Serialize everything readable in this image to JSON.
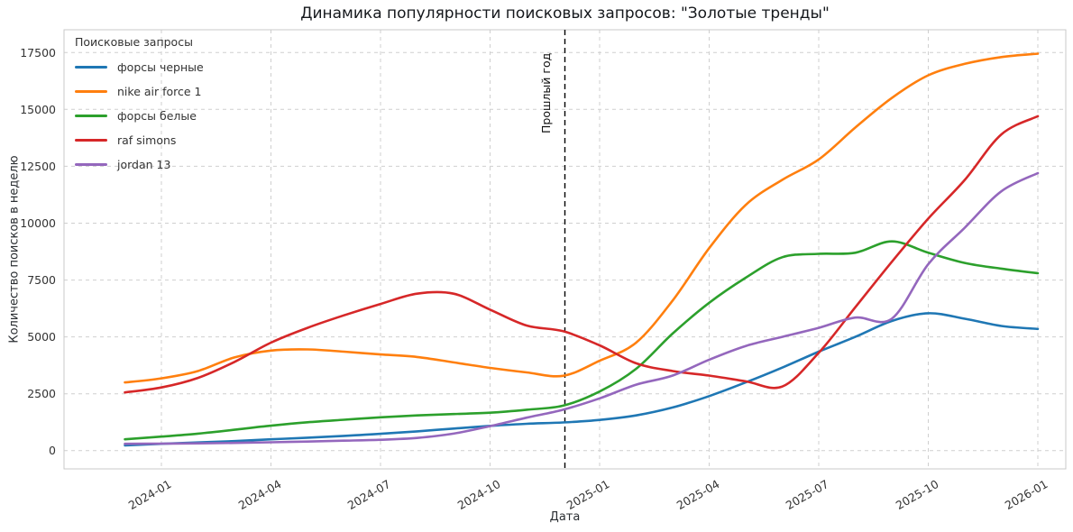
{
  "chart_data": {
    "type": "line",
    "title": "Динамика популярности поисковых запросов: \"Золотые тренды\"",
    "xlabel": "Дата",
    "ylabel": "Количество поисков в неделю",
    "legend_title": "Поисковые запросы",
    "legend_position": "upper-left",
    "grid": true,
    "grid_style": "dashed",
    "ylim": [
      -800,
      18500
    ],
    "y_ticks": [
      0,
      2500,
      5000,
      7500,
      10000,
      12500,
      15000,
      17500
    ],
    "x_tick_labels": [
      "2024-01",
      "2024-04",
      "2024-07",
      "2024-10",
      "2025-01",
      "2025-04",
      "2025-07",
      "2025-10",
      "2026-01"
    ],
    "x": [
      "2023-12",
      "2024-01",
      "2024-02",
      "2024-03",
      "2024-04",
      "2024-05",
      "2024-06",
      "2024-07",
      "2024-08",
      "2024-09",
      "2024-10",
      "2024-11",
      "2024-12",
      "2025-01",
      "2025-02",
      "2025-03",
      "2025-04",
      "2025-05",
      "2025-06",
      "2025-07",
      "2025-08",
      "2025-09",
      "2025-10",
      "2025-11",
      "2025-12",
      "2026-01"
    ],
    "series": [
      {
        "name": "форсы черные",
        "color": "#1f77b4",
        "values": [
          230,
          300,
          360,
          420,
          500,
          570,
          650,
          740,
          850,
          970,
          1090,
          1180,
          1240,
          1350,
          1550,
          1900,
          2400,
          3000,
          3650,
          4350,
          5000,
          5700,
          6040,
          5800,
          5480,
          5350
        ]
      },
      {
        "name": "nike air force 1",
        "color": "#ff7f0e",
        "values": [
          3000,
          3180,
          3500,
          4100,
          4400,
          4450,
          4350,
          4230,
          4120,
          3880,
          3640,
          3440,
          3290,
          3950,
          4750,
          6600,
          8900,
          10800,
          11900,
          12800,
          14200,
          15500,
          16500,
          17000,
          17300,
          17450
        ]
      },
      {
        "name": "форсы белые",
        "color": "#2ca02c",
        "values": [
          500,
          620,
          750,
          920,
          1100,
          1250,
          1360,
          1465,
          1550,
          1610,
          1670,
          1800,
          1980,
          2600,
          3600,
          5150,
          6500,
          7600,
          8500,
          8650,
          8700,
          9200,
          8700,
          8250,
          8000,
          7800
        ]
      },
      {
        "name": "raf simons",
        "color": "#d62728",
        "values": [
          2560,
          2780,
          3200,
          3900,
          4750,
          5400,
          5950,
          6450,
          6900,
          6900,
          6200,
          5500,
          5250,
          4630,
          3840,
          3500,
          3300,
          3050,
          2820,
          4300,
          6300,
          8300,
          10200,
          11900,
          13900,
          14700
        ]
      },
      {
        "name": "jordan 13",
        "color": "#9467bd",
        "values": [
          300,
          310,
          320,
          340,
          370,
          400,
          440,
          480,
          560,
          750,
          1080,
          1450,
          1800,
          2300,
          2900,
          3300,
          4000,
          4600,
          5000,
          5400,
          5850,
          5800,
          8200,
          9800,
          11400,
          12200
        ]
      }
    ],
    "annotation": {
      "label": "Прошлый год",
      "x": "2024-12",
      "style": "vertical-dashed-line"
    }
  },
  "style": {
    "grid_color": "#cfcfcf",
    "spine_color": "#c9c9c9",
    "annotation_line_color": "#000000",
    "background": "#ffffff"
  }
}
